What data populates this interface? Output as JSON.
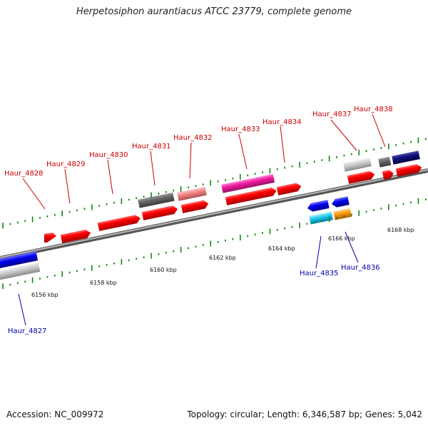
{
  "title": "Herpetosiphon aurantiacus ATCC 23779, complete genome",
  "accession": "Accession: NC_009972",
  "topology": "Topology: circular; Length: 6,346,587 bp; Genes: 5,042",
  "colors": {
    "backbone": "#8a8a8a",
    "tick": "#118811",
    "forward_label": "#cc0000",
    "reverse_label": "#0000aa"
  },
  "ticks": [
    {
      "label": "6156 kbp",
      "kbp": 6156
    },
    {
      "label": "6158 kbp",
      "kbp": 6158
    },
    {
      "label": "6160 kbp",
      "kbp": 6160
    },
    {
      "label": "6162 kbp",
      "kbp": 6162
    },
    {
      "label": "6164 kbp",
      "kbp": 6164
    },
    {
      "label": "6166 kbp",
      "kbp": 6166
    },
    {
      "label": "6168 kbp",
      "kbp": 6168
    }
  ],
  "gene_labels": {
    "forward": [
      "Haur_4828",
      "Haur_4829",
      "Haur_4830",
      "Haur_4831",
      "Haur_4832",
      "Haur_4833",
      "Haur_4834",
      "Haur_4837",
      "Haur_4838"
    ],
    "reverse": [
      "Haur_4827",
      "Haur_4835",
      "Haur_4836"
    ]
  }
}
